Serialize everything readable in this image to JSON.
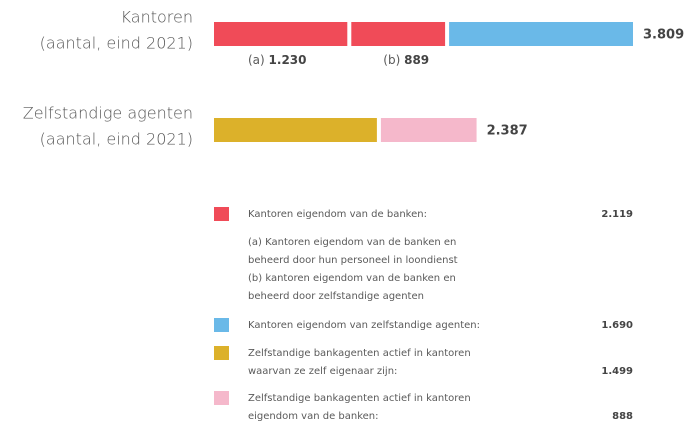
{
  "chart_data": {
    "type": "stacked-bar",
    "groups": [
      {
        "label": [
          "Kantoren",
          "(aantal, eind 2021)"
        ],
        "total": 3809,
        "total_label": "3.809",
        "segments": [
          {
            "value": 1230,
            "value_label": "1.230",
            "tag": "(a)",
            "color": "#f04b58"
          },
          {
            "value": 889,
            "value_label": "889",
            "tag": "(b)",
            "color": "#f04b58"
          },
          {
            "value": 1690,
            "color": "#6ab9e8"
          }
        ]
      },
      {
        "label": [
          "Zelfstandige agenten",
          "(aantal, eind 2021)"
        ],
        "total": 2387,
        "total_label": "2.387",
        "segments": [
          {
            "value": 1499,
            "color": "#dcb12a"
          },
          {
            "value": 888,
            "color": "#f5b8cb"
          }
        ]
      }
    ],
    "legend": [
      {
        "color": "#f04b58",
        "lines": [
          "Kantoren eigendom van de banken:"
        ],
        "value": 2119,
        "value_label": "2.119"
      },
      {
        "note": [
          "(a) Kantoren eigendom van de banken en",
          "beheerd door hun personeel in loondienst",
          "(b) kantoren eigendom van de banken en",
          "beheerd door zelfstandige agenten"
        ]
      },
      {
        "color": "#6ab9e8",
        "lines": [
          "Kantoren eigendom van zelfstandige agenten:"
        ],
        "value": 1690,
        "value_label": "1.690"
      },
      {
        "color": "#dcb12a",
        "lines": [
          "Zelfstandige bankagenten actief in kantoren",
          "waarvan ze zelf eigenaar zijn:"
        ],
        "value": 1499,
        "value_label": "1.499"
      },
      {
        "color": "#f5b8cb",
        "lines": [
          "Zelfstandige bankagenten actief in kantoren",
          "eigendom van de banken:"
        ],
        "value": 888,
        "value_label": "888"
      }
    ]
  }
}
